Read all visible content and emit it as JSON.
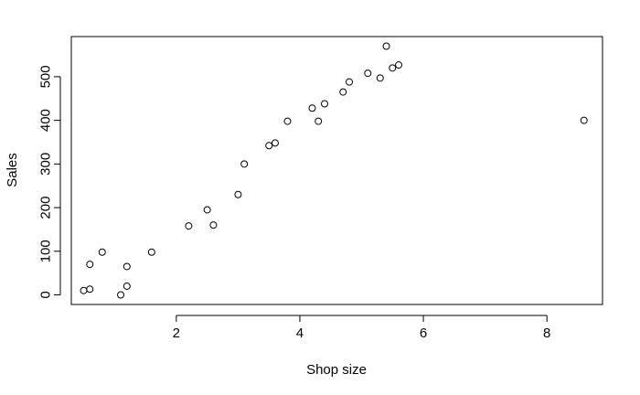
{
  "chart_data": {
    "type": "scatter",
    "title": "",
    "xlabel": "Shop size",
    "ylabel": "Sales",
    "xlim": [
      0.3,
      8.9
    ],
    "ylim": [
      -22,
      592
    ],
    "x_ticks": [
      2,
      4,
      6,
      8
    ],
    "y_ticks": [
      0,
      100,
      200,
      300,
      400,
      500
    ],
    "grid": false,
    "point_color": "#000000",
    "points": [
      {
        "x": 0.5,
        "y": 10
      },
      {
        "x": 0.6,
        "y": 13
      },
      {
        "x": 0.6,
        "y": 70
      },
      {
        "x": 0.8,
        "y": 98
      },
      {
        "x": 1.1,
        "y": 0
      },
      {
        "x": 1.2,
        "y": 20
      },
      {
        "x": 1.2,
        "y": 65
      },
      {
        "x": 1.6,
        "y": 98
      },
      {
        "x": 2.2,
        "y": 158
      },
      {
        "x": 2.5,
        "y": 195
      },
      {
        "x": 2.6,
        "y": 160
      },
      {
        "x": 3.0,
        "y": 230
      },
      {
        "x": 3.1,
        "y": 300
      },
      {
        "x": 3.5,
        "y": 342
      },
      {
        "x": 3.6,
        "y": 348
      },
      {
        "x": 3.8,
        "y": 398
      },
      {
        "x": 4.2,
        "y": 428
      },
      {
        "x": 4.3,
        "y": 398
      },
      {
        "x": 4.4,
        "y": 438
      },
      {
        "x": 4.7,
        "y": 465
      },
      {
        "x": 4.8,
        "y": 488
      },
      {
        "x": 5.1,
        "y": 508
      },
      {
        "x": 5.3,
        "y": 497
      },
      {
        "x": 5.4,
        "y": 570
      },
      {
        "x": 5.5,
        "y": 520
      },
      {
        "x": 5.6,
        "y": 527
      },
      {
        "x": 8.6,
        "y": 400
      }
    ]
  }
}
